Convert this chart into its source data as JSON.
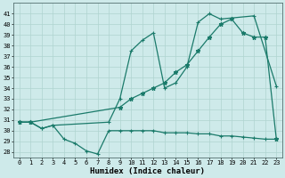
{
  "xlabel": "Humidex (Indice chaleur)",
  "bg_color": "#ceeaea",
  "grid_color": "#afd4d0",
  "line_color": "#1a7a6a",
  "ylim": [
    27.5,
    42.0
  ],
  "xlim": [
    -0.5,
    23.5
  ],
  "curve_a_x": [
    0,
    1,
    2,
    3,
    4,
    5,
    6,
    7,
    8,
    9,
    10,
    11,
    12,
    13,
    14,
    15,
    16,
    17,
    18,
    19,
    20,
    21,
    22,
    23
  ],
  "curve_a_y": [
    30.8,
    30.8,
    30.2,
    30.5,
    29.2,
    28.8,
    28.1,
    27.8,
    30.0,
    30.0,
    30.0,
    30.0,
    30.0,
    29.8,
    29.8,
    29.8,
    29.7,
    29.7,
    29.5,
    29.5,
    29.4,
    29.3,
    29.2,
    29.2
  ],
  "curve_b_x": [
    0,
    1,
    2,
    3,
    8,
    9,
    10,
    11,
    12,
    13,
    14,
    15,
    16,
    17,
    18,
    21,
    23
  ],
  "curve_b_y": [
    30.8,
    30.8,
    30.2,
    30.5,
    30.8,
    33.0,
    37.5,
    38.5,
    39.2,
    34.0,
    34.5,
    36.0,
    40.2,
    41.0,
    40.5,
    40.8,
    34.2
  ],
  "curve_c_x": [
    0,
    1,
    9,
    10,
    11,
    12,
    13,
    14,
    15,
    16,
    17,
    18,
    19,
    20,
    21,
    22,
    23
  ],
  "curve_c_y": [
    30.8,
    30.8,
    32.2,
    33.0,
    33.5,
    34.0,
    34.5,
    35.5,
    36.2,
    37.5,
    38.8,
    40.0,
    40.5,
    39.2,
    38.8,
    38.8,
    29.2
  ]
}
